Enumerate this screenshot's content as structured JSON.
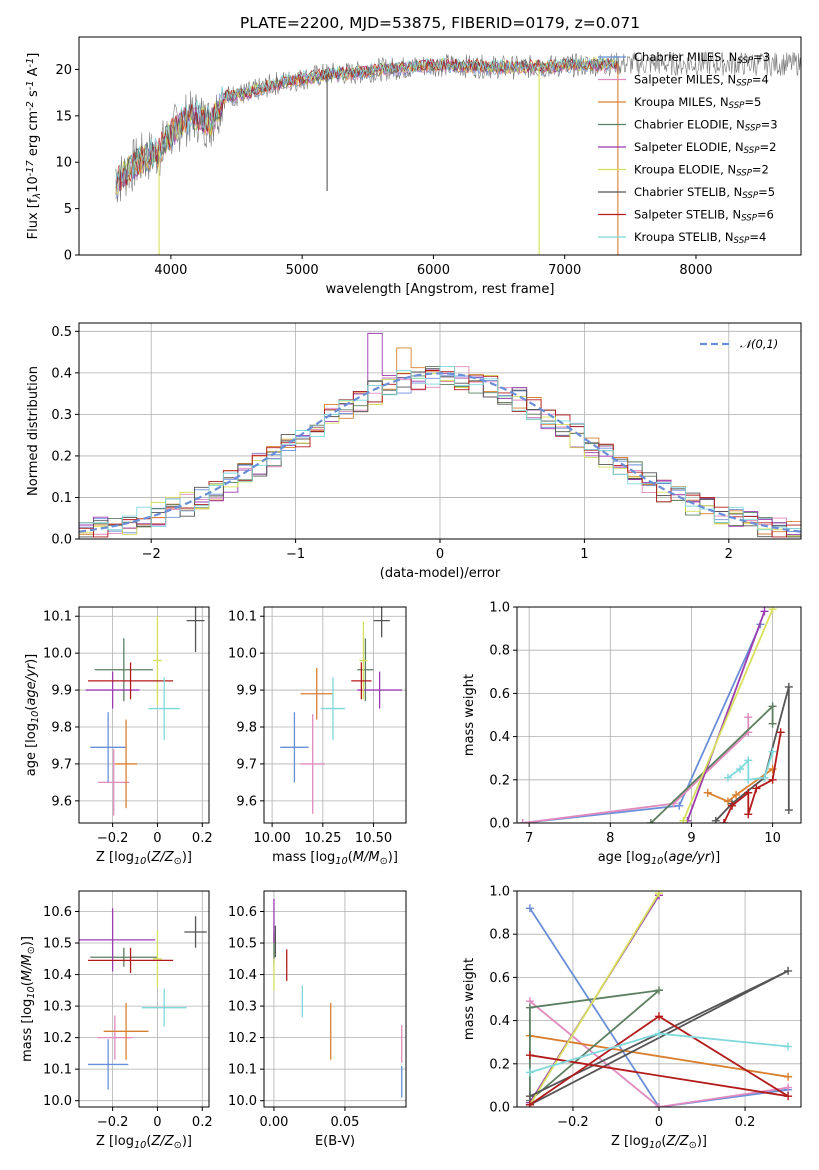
{
  "figure": {
    "title": "PLATE=2200, MJD=53875, FIBERID=0179, z=0.071"
  },
  "colors": {
    "ChabMILES": "#6a8fd8",
    "SalpMILES": "#e08ac0",
    "KroupaMILES": "#d98030",
    "ChabELODIE": "#5b7f60",
    "SalpELODIE": "#9b3bb0",
    "KroupaELODIE": "#d7e05a",
    "ChabSTELIB": "#555555",
    "SalpSTELIB": "#b31b1b",
    "KroupaSTELIB": "#7fd8dc",
    "normal_curve": "#6a8fd8",
    "grid": "#b0b0b0"
  },
  "chart_data": [
    {
      "id": "spectrum",
      "type": "line",
      "xlabel": "wavelength [Angstrom, rest frame]",
      "ylabel": "Flux [f$_\\lambda$10$^{-17}$ erg cm$^{-2}$ s$^{-1}$ A$^{-1}$]",
      "xlim": [
        3300,
        8800
      ],
      "ylim": [
        0,
        23.5
      ],
      "xticks": [
        4000,
        5000,
        6000,
        7000,
        8000
      ],
      "yticks": [
        0,
        5,
        10,
        15,
        20
      ],
      "grid": false,
      "legend_position": "right",
      "legend": [
        "Chabrier MILES, N$_{SSP}$=3",
        "Salpeter MILES, N$_{SSP}$=4",
        "Kroupa MILES, N$_{SSP}$=5",
        "Chabrier ELODIE, N$_{SSP}$=3",
        "Salpeter ELODIE, N$_{SSP}$=2",
        "Kroupa ELODIE, N$_{SSP}$=2",
        "Chabrier STELIB, N$_{SSP}$=5",
        "Salpeter STELIB, N$_{SSP}$=6",
        "Kroupa STELIB, N$_{SSP}$=4"
      ],
      "continuum": {
        "x": [
          3580,
          3700,
          3800,
          3900,
          4000,
          4100,
          4200,
          4300,
          4400,
          4600,
          4800,
          5000,
          5200,
          5400,
          5600,
          5800,
          6000,
          6200,
          6400,
          6600,
          6800,
          7000,
          7200,
          7400
        ],
        "y": [
          7.8,
          9.5,
          10.5,
          11.0,
          13.0,
          14.5,
          15.0,
          14.2,
          17.0,
          17.5,
          18.5,
          19.0,
          19.5,
          19.6,
          20.0,
          20.2,
          20.5,
          20.4,
          20.3,
          20.2,
          20.3,
          20.4,
          20.5,
          20.6
        ]
      },
      "dips": [
        {
          "x": 3910,
          "y": 0.0
        },
        {
          "x": 5190,
          "y": 6.9
        },
        {
          "x": 6805,
          "y": 0.0
        },
        {
          "x": 7405,
          "y": 0.0
        }
      ]
    },
    {
      "id": "residual_histogram",
      "type": "histogram",
      "xlabel": "(data-model)/error",
      "ylabel": "Normed distribution",
      "xlim": [
        -2.5,
        2.5
      ],
      "ylim": [
        0,
        0.52
      ],
      "xticks": [
        -2,
        -1,
        0,
        1,
        2
      ],
      "yticks": [
        0.0,
        0.1,
        0.2,
        0.3,
        0.4,
        0.5
      ],
      "grid": true,
      "legend_position": "top-right",
      "legend": [
        "$\\mathcal{N}(0,1)$"
      ],
      "bin_width": 0.1,
      "note": "step histograms for the nine fits plus a dashed standard normal curve"
    },
    {
      "id": "age_vs_Z",
      "type": "errorbar",
      "xlabel": "Z [log$_{10}$($Z/Z_\\odot$)]",
      "ylabel": "age  [log$_{10}$($age/yr$)]",
      "xlim": [
        -0.35,
        0.23
      ],
      "ylim": [
        9.54,
        10.125
      ],
      "xticks": [
        -0.2,
        0.0,
        0.2
      ],
      "yticks": [
        9.6,
        9.7,
        9.8,
        9.9,
        10.0,
        10.1
      ],
      "grid": true,
      "points": [
        {
          "fit": "ChabMILES",
          "x": -0.22,
          "y": 9.745,
          "xerr": 0.08,
          "yerr": 0.095
        },
        {
          "fit": "SalpMILES",
          "x": -0.195,
          "y": 9.65,
          "xerr": 0.07,
          "yerr": 0.09
        },
        {
          "fit": "KroupaMILES",
          "x": -0.14,
          "y": 9.7,
          "xerr": 0.05,
          "yerr": 0.12
        },
        {
          "fit": "ChabELODIE",
          "x": -0.15,
          "y": 9.955,
          "xerr": 0.13,
          "yerr": 0.085
        },
        {
          "fit": "SalpELODIE",
          "x": -0.2,
          "y": 9.9,
          "xerr": 0.12,
          "yerr": 0.05
        },
        {
          "fit": "KroupaELODIE",
          "x": 0.0,
          "y": 9.98,
          "xerr": 0.02,
          "yerr": 0.12
        },
        {
          "fit": "ChabSTELIB",
          "x": 0.17,
          "y": 10.088,
          "xerr": 0.04,
          "yerr": 0.085
        },
        {
          "fit": "SalpSTELIB",
          "x": -0.12,
          "y": 9.925,
          "xerr": 0.19,
          "yerr": 0.05
        },
        {
          "fit": "KroupaSTELIB",
          "x": 0.03,
          "y": 9.85,
          "xerr": 0.07,
          "yerr": 0.085
        }
      ]
    },
    {
      "id": "age_vs_mass",
      "type": "errorbar",
      "xlabel": "mass [log$_{10}$($M/M_\\odot$)]",
      "ylabel": "",
      "xlim": [
        9.96,
        10.66
      ],
      "ylim": [
        9.54,
        10.125
      ],
      "xticks": [
        10.0,
        10.25,
        10.5
      ],
      "xtick_labels": [
        "10.00",
        "10.25",
        "10.50"
      ],
      "yticks": [
        9.6,
        9.7,
        9.8,
        9.9,
        10.0,
        10.1
      ],
      "grid": true,
      "points": [
        {
          "fit": "ChabMILES",
          "x": 10.11,
          "y": 9.745,
          "xerr": 0.07,
          "yerr": 0.095
        },
        {
          "fit": "SalpMILES",
          "x": 10.2,
          "y": 9.7,
          "xerr": 0.06,
          "yerr": 0.135
        },
        {
          "fit": "KroupaMILES",
          "x": 10.22,
          "y": 9.89,
          "xerr": 0.08,
          "yerr": 0.07
        },
        {
          "fit": "ChabELODIE",
          "x": 10.46,
          "y": 9.955,
          "xerr": 0.04,
          "yerr": 0.085
        },
        {
          "fit": "SalpELODIE",
          "x": 10.53,
          "y": 9.9,
          "xerr": 0.11,
          "yerr": 0.05
        },
        {
          "fit": "KroupaELODIE",
          "x": 10.45,
          "y": 9.98,
          "xerr": 0.02,
          "yerr": 0.105
        },
        {
          "fit": "ChabSTELIB",
          "x": 10.54,
          "y": 10.088,
          "xerr": 0.04,
          "yerr": 0.045
        },
        {
          "fit": "SalpSTELIB",
          "x": 10.44,
          "y": 9.925,
          "xerr": 0.05,
          "yerr": 0.05
        },
        {
          "fit": "KroupaSTELIB",
          "x": 10.3,
          "y": 9.85,
          "xerr": 0.06,
          "yerr": 0.085
        }
      ]
    },
    {
      "id": "weight_vs_age",
      "type": "line",
      "xlabel": "age  [log$_{10}$($age/yr$)]",
      "ylabel": "mass weight",
      "xlim": [
        6.85,
        10.35
      ],
      "ylim": [
        0,
        1.0
      ],
      "xticks": [
        7,
        8,
        9,
        10
      ],
      "yticks": [
        0.0,
        0.2,
        0.4,
        0.6,
        0.8,
        1.0
      ],
      "grid": true,
      "series": [
        {
          "fit": "ChabMILES",
          "x": [
            6.92,
            8.85,
            9.85
          ],
          "y": [
            0.0,
            0.08,
            0.92
          ]
        },
        {
          "fit": "SalpMILES",
          "x": [
            6.92,
            8.78,
            9.7,
            9.7
          ],
          "y": [
            0.0,
            0.09,
            0.42,
            0.49
          ]
        },
        {
          "fit": "KroupaMILES",
          "x": [
            9.2,
            9.45,
            9.55,
            10.0
          ],
          "y": [
            0.14,
            0.1,
            0.13,
            0.25
          ]
        },
        {
          "fit": "ChabELODIE",
          "x": [
            8.5,
            10.0,
            10.0
          ],
          "y": [
            0.0,
            0.54,
            0.46
          ]
        },
        {
          "fit": "SalpELODIE",
          "x": [
            8.95,
            9.9
          ],
          "y": [
            0.01,
            0.98
          ]
        },
        {
          "fit": "KroupaELODIE",
          "x": [
            8.9,
            10.0
          ],
          "y": [
            0.01,
            0.99
          ]
        },
        {
          "fit": "ChabSTELIB",
          "x": [
            9.3,
            9.5,
            9.9,
            10.2,
            10.2
          ],
          "y": [
            0.01,
            0.09,
            0.21,
            0.63,
            0.06
          ]
        },
        {
          "fit": "SalpSTELIB",
          "x": [
            9.4,
            9.5,
            9.7,
            9.7,
            9.8,
            10.0,
            10.1
          ],
          "y": [
            0.0,
            0.08,
            0.14,
            0.04,
            0.16,
            0.2,
            0.42
          ]
        },
        {
          "fit": "KroupaSTELIB",
          "x": [
            9.45,
            9.6,
            9.7,
            9.7,
            9.9,
            10.0
          ],
          "y": [
            0.21,
            0.25,
            0.29,
            0.2,
            0.21,
            0.33
          ]
        }
      ]
    },
    {
      "id": "mass_vs_Z",
      "type": "errorbar",
      "xlabel": "Z [log$_{10}$($Z/Z_\\odot$)]",
      "ylabel": "mass [log$_{10}$($M/M_\\odot$)]",
      "xlim": [
        -0.35,
        0.23
      ],
      "ylim": [
        9.98,
        10.665
      ],
      "xticks": [
        -0.2,
        0.0,
        0.2
      ],
      "yticks": [
        10.0,
        10.1,
        10.2,
        10.3,
        10.4,
        10.5,
        10.6
      ],
      "grid": true,
      "points": [
        {
          "fit": "ChabMILES",
          "x": -0.22,
          "y": 10.115,
          "xerr": 0.09,
          "yerr": 0.08
        },
        {
          "fit": "SalpMILES",
          "x": -0.19,
          "y": 10.2,
          "xerr": 0.08,
          "yerr": 0.07
        },
        {
          "fit": "KroupaMILES",
          "x": -0.14,
          "y": 10.22,
          "xerr": 0.1,
          "yerr": 0.09
        },
        {
          "fit": "ChabELODIE",
          "x": -0.15,
          "y": 10.455,
          "xerr": 0.15,
          "yerr": 0.03
        },
        {
          "fit": "SalpELODIE",
          "x": -0.2,
          "y": 10.51,
          "xerr": 0.19,
          "yerr": 0.1
        },
        {
          "fit": "KroupaELODIE",
          "x": 0.0,
          "y": 10.45,
          "xerr": 0.02,
          "yerr": 0.09
        },
        {
          "fit": "ChabSTELIB",
          "x": 0.17,
          "y": 10.535,
          "xerr": 0.05,
          "yerr": 0.05
        },
        {
          "fit": "SalpSTELIB",
          "x": -0.12,
          "y": 10.445,
          "xerr": 0.19,
          "yerr": 0.04
        },
        {
          "fit": "KroupaSTELIB",
          "x": 0.03,
          "y": 10.295,
          "xerr": 0.1,
          "yerr": 0.06
        }
      ]
    },
    {
      "id": "mass_vs_ebv",
      "type": "errorbar",
      "xlabel": "E(B-V)",
      "ylabel": "",
      "xlim": [
        -0.007,
        0.093
      ],
      "ylim": [
        9.98,
        10.665
      ],
      "xticks": [
        0.0,
        0.05
      ],
      "xtick_labels": [
        "0.00",
        "0.05"
      ],
      "yticks": [
        10.0,
        10.1,
        10.2,
        10.3,
        10.4,
        10.5,
        10.6
      ],
      "grid": true,
      "points": [
        {
          "fit": "ChabMILES",
          "x": 0.09,
          "y": 10.06,
          "xerr": 0,
          "yerr": 0.05
        },
        {
          "fit": "SalpMILES",
          "x": 0.09,
          "y": 10.18,
          "xerr": 0,
          "yerr": 0.06
        },
        {
          "fit": "KroupaMILES",
          "x": 0.04,
          "y": 10.22,
          "xerr": 0,
          "yerr": 0.09
        },
        {
          "fit": "ChabELODIE",
          "x": 0.0,
          "y": 10.48,
          "xerr": 0,
          "yerr": 0.05
        },
        {
          "fit": "SalpELODIE",
          "x": 0.0,
          "y": 10.57,
          "xerr": 0,
          "yerr": 0.07
        },
        {
          "fit": "KroupaELODIE",
          "x": 0.0,
          "y": 10.4,
          "xerr": 0,
          "yerr": 0.05
        },
        {
          "fit": "ChabSTELIB",
          "x": 0.001,
          "y": 10.505,
          "xerr": 0,
          "yerr": 0.05
        },
        {
          "fit": "SalpSTELIB",
          "x": 0.009,
          "y": 10.43,
          "xerr": 0,
          "yerr": 0.05
        },
        {
          "fit": "KroupaSTELIB",
          "x": 0.02,
          "y": 10.315,
          "xerr": 0,
          "yerr": 0.05
        }
      ]
    },
    {
      "id": "weight_vs_Z",
      "type": "line",
      "xlabel": "Z [log$_{10}$($Z/Z_\\odot$)]",
      "ylabel": "mass weight",
      "xlim": [
        -0.33,
        0.33
      ],
      "ylim": [
        0,
        1.0
      ],
      "xticks": [
        -0.2,
        0.0,
        0.2
      ],
      "yticks": [
        0.0,
        0.2,
        0.4,
        0.6,
        0.8,
        1.0
      ],
      "grid": true,
      "series": [
        {
          "fit": "ChabMILES",
          "x": [
            -0.3,
            0.0,
            0.3
          ],
          "y": [
            0.92,
            0.0,
            0.08
          ]
        },
        {
          "fit": "SalpMILES",
          "x": [
            -0.3,
            0.0,
            0.3
          ],
          "y": [
            0.49,
            0.0,
            0.09
          ]
        },
        {
          "fit": "KroupaMILES",
          "x": [
            -0.3,
            0.3
          ],
          "y": [
            0.33,
            0.14
          ]
        },
        {
          "fit": "ChabELODIE",
          "x": [
            -0.3,
            0.0,
            -0.3,
            -0.3
          ],
          "y": [
            0.03,
            0.54,
            0.46,
            0.01
          ]
        },
        {
          "fit": "SalpELODIE",
          "x": [
            -0.3,
            0.0
          ],
          "y": [
            0.02,
            0.98
          ]
        },
        {
          "fit": "KroupaELODIE",
          "x": [
            -0.3,
            0.0
          ],
          "y": [
            0.01,
            0.99
          ]
        },
        {
          "fit": "ChabSTELIB",
          "x": [
            -0.3,
            0.3,
            -0.3
          ],
          "y": [
            0.05,
            0.63,
            0.01
          ]
        },
        {
          "fit": "SalpSTELIB",
          "x": [
            -0.3,
            0.0,
            0.3,
            -0.3
          ],
          "y": [
            0.01,
            0.42,
            0.05,
            0.24
          ]
        },
        {
          "fit": "KroupaSTELIB",
          "x": [
            -0.3,
            0.0,
            0.3
          ],
          "y": [
            0.16,
            0.34,
            0.28
          ]
        }
      ]
    }
  ]
}
